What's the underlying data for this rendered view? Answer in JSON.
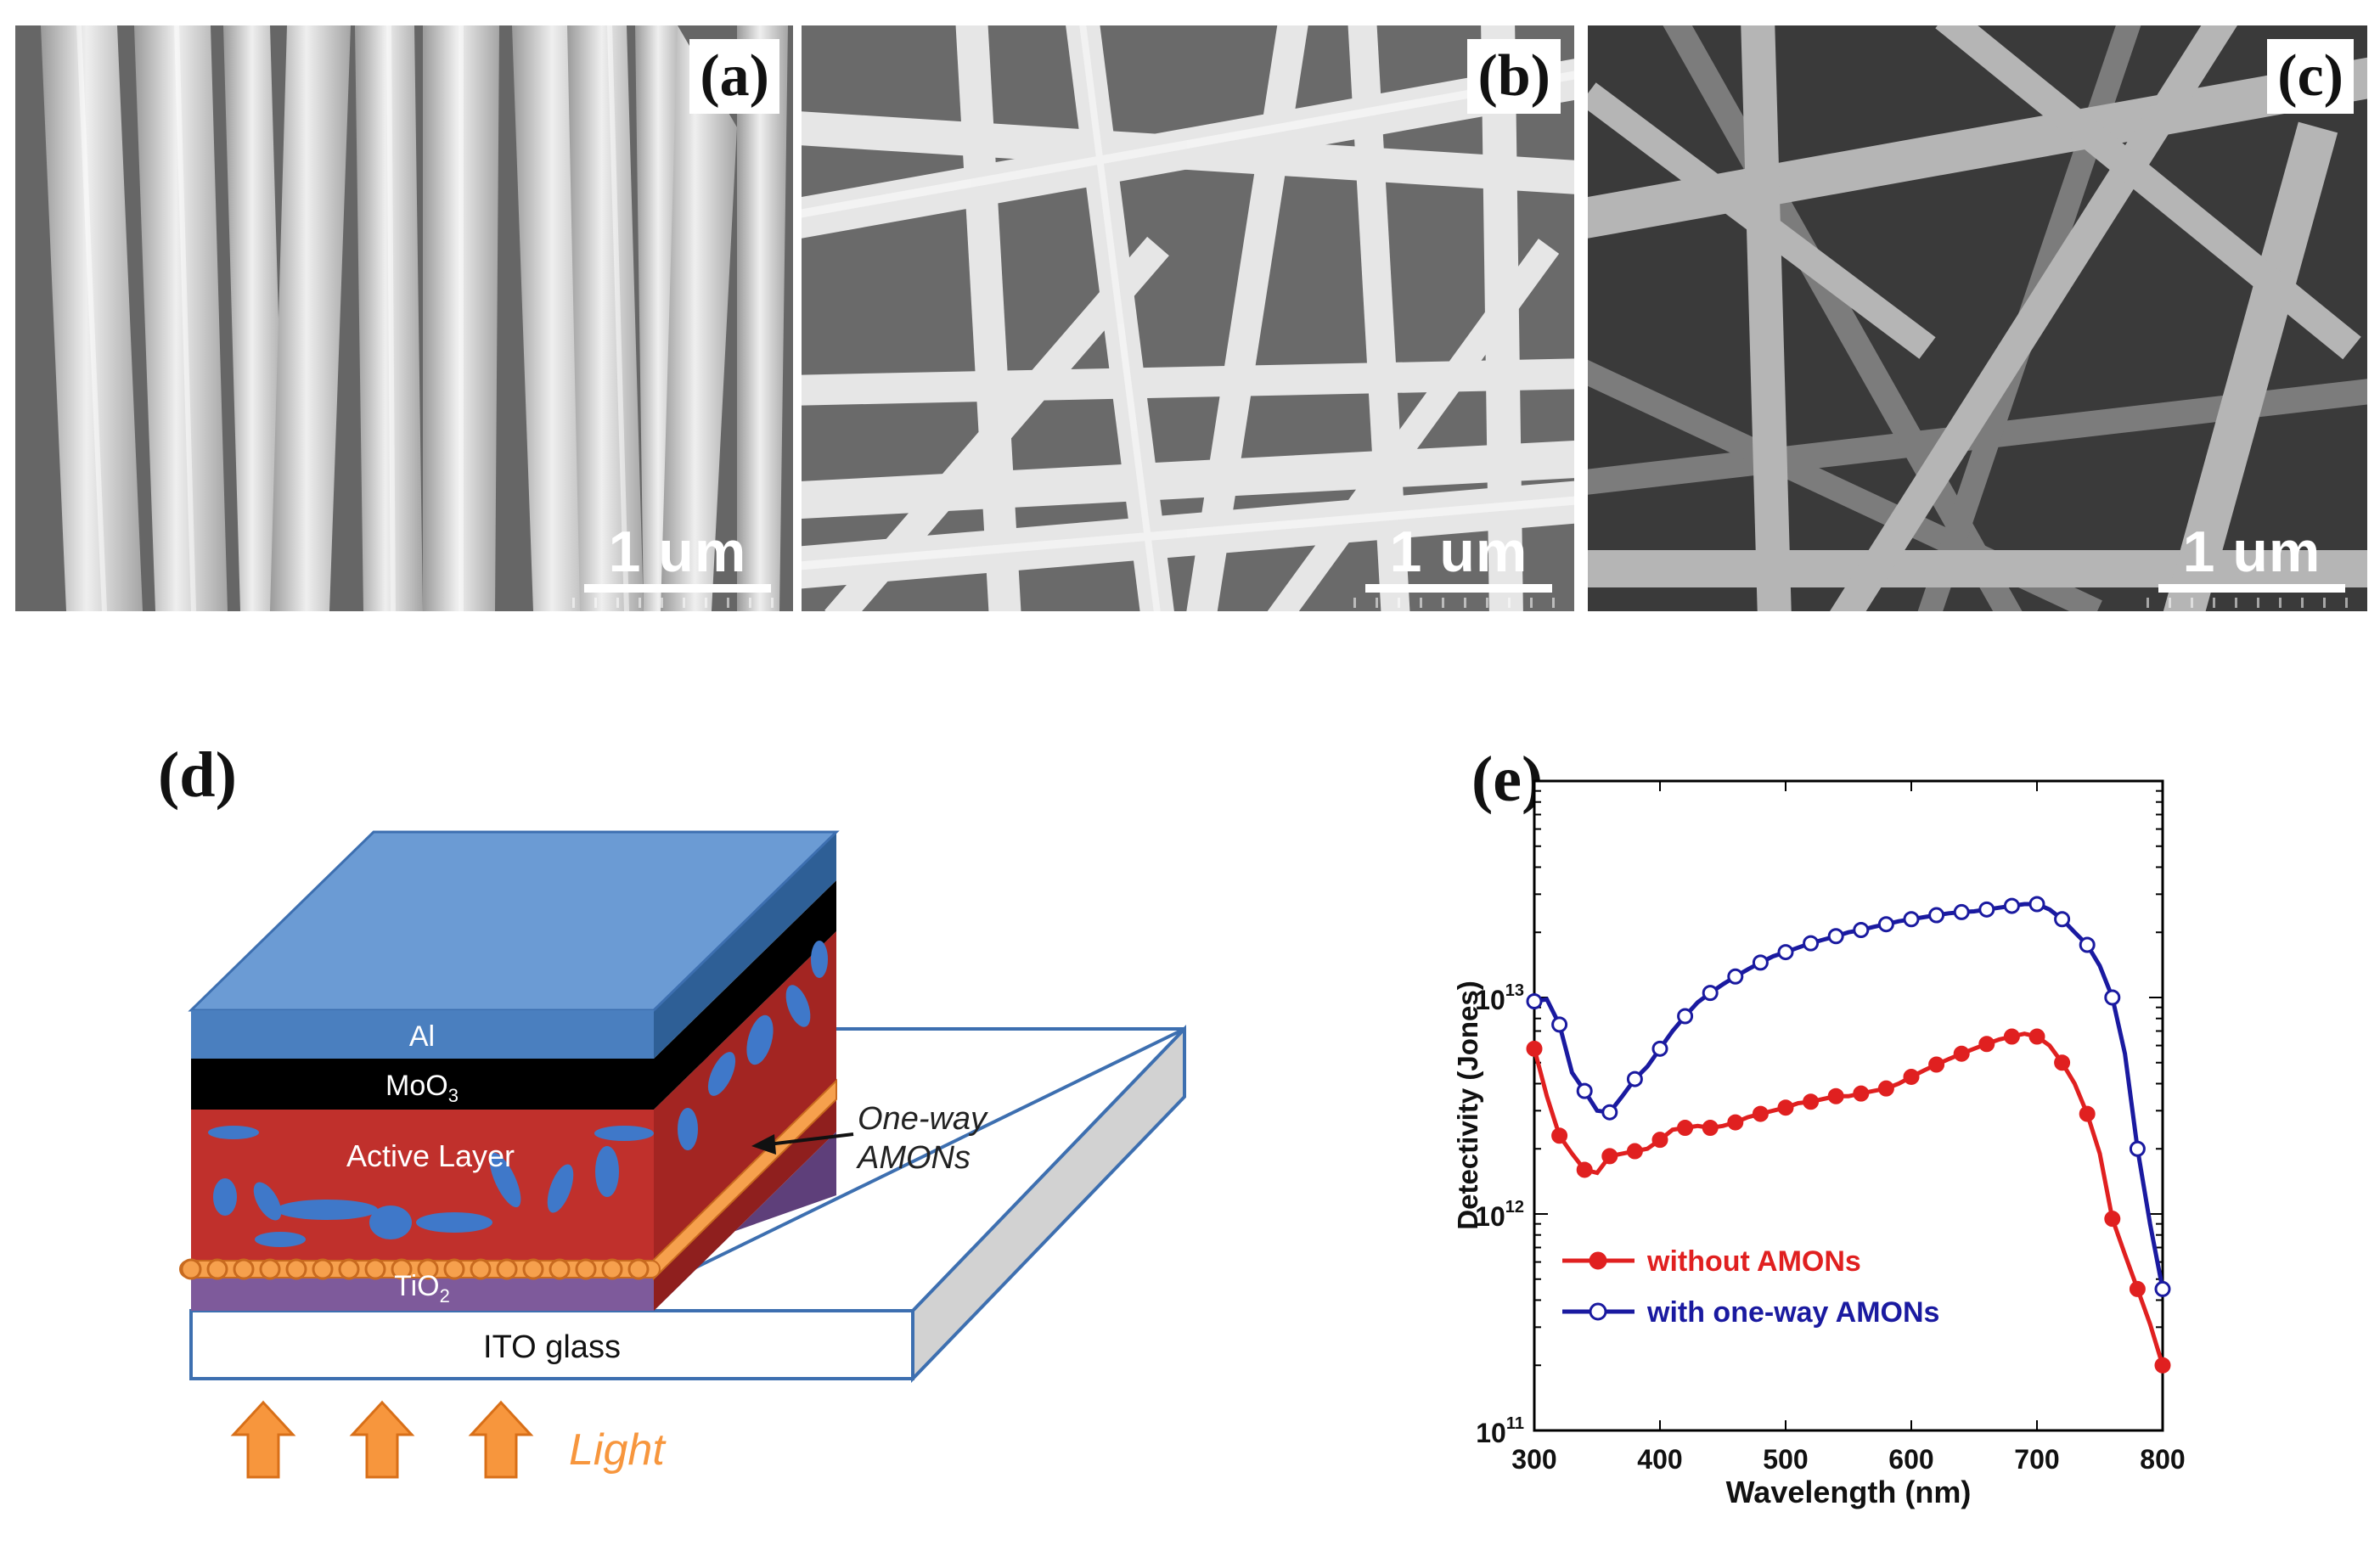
{
  "panels": {
    "a": {
      "label": "(a)",
      "scale_bar": "1 um"
    },
    "b": {
      "label": "(b)",
      "scale_bar": "1 um"
    },
    "c": {
      "label": "(c)",
      "scale_bar": "1 um"
    },
    "d": {
      "label": "(d)",
      "layers": {
        "al": "Al",
        "moo3": "MoO",
        "moo3_sub": "3",
        "active": "Active Layer",
        "tio2": "TiO",
        "tio2_sub": "2",
        "ito": "ITO glass"
      },
      "annotation_line1": "One-way",
      "annotation_line2": "AMONs",
      "light_label": "Light",
      "colors": {
        "al": "#4a7fbf",
        "moo3": "#000000",
        "active": "#c0302c",
        "tio2": "#7e5a9b",
        "amon": "#f6a04d",
        "light": "#f7963d"
      }
    },
    "e": {
      "label": "(e)"
    }
  },
  "chart_data": {
    "type": "line",
    "xlabel": "Wavelength (nm)",
    "ylabel": "Detectivity (Jones)",
    "xlim": [
      300,
      800
    ],
    "ylim": [
      100000000000.0,
      100000000000000.0
    ],
    "yscale": "log",
    "xticks": [
      300,
      400,
      500,
      600,
      700,
      800
    ],
    "ytick_labels": [
      {
        "value": 100000000000.0,
        "base": "10",
        "exp": "11"
      },
      {
        "value": 1000000000000.0,
        "base": "10",
        "exp": "12"
      },
      {
        "value": 10000000000000.0,
        "base": "10",
        "exp": "13"
      }
    ],
    "legend_position": "lower-left",
    "series": [
      {
        "name": "without AMONs",
        "color": "#e02020",
        "marker": "filled-circle",
        "x": [
          300,
          310,
          320,
          330,
          340,
          350,
          360,
          370,
          380,
          390,
          400,
          410,
          420,
          430,
          440,
          450,
          460,
          470,
          480,
          490,
          500,
          510,
          520,
          530,
          540,
          550,
          560,
          570,
          580,
          590,
          600,
          610,
          620,
          630,
          640,
          650,
          660,
          670,
          680,
          690,
          700,
          710,
          720,
          730,
          740,
          750,
          760,
          770,
          780,
          790,
          800
        ],
        "y": [
          5800000000000.0,
          3500000000000.0,
          2300000000000.0,
          1900000000000.0,
          1600000000000.0,
          1550000000000.0,
          1850000000000.0,
          1900000000000.0,
          1950000000000.0,
          2000000000000.0,
          2200000000000.0,
          2450000000000.0,
          2500000000000.0,
          2550000000000.0,
          2500000000000.0,
          2550000000000.0,
          2650000000000.0,
          2800000000000.0,
          2900000000000.0,
          3000000000000.0,
          3100000000000.0,
          3250000000000.0,
          3300000000000.0,
          3400000000000.0,
          3500000000000.0,
          3500000000000.0,
          3600000000000.0,
          3700000000000.0,
          3800000000000.0,
          4000000000000.0,
          4300000000000.0,
          4600000000000.0,
          4900000000000.0,
          5200000000000.0,
          5500000000000.0,
          5800000000000.0,
          6100000000000.0,
          6400000000000.0,
          6600000000000.0,
          6800000000000.0,
          6600000000000.0,
          6000000000000.0,
          5000000000000.0,
          4000000000000.0,
          2900000000000.0,
          1900000000000.0,
          950000000000.0,
          650000000000.0,
          450000000000.0,
          310000000000.0,
          200000000000.0
        ]
      },
      {
        "name": "with one-way AMONs",
        "color": "#1a1aa0",
        "marker": "open-circle",
        "x": [
          300,
          310,
          320,
          330,
          340,
          350,
          360,
          370,
          380,
          390,
          400,
          410,
          420,
          430,
          440,
          450,
          460,
          470,
          480,
          490,
          500,
          510,
          520,
          530,
          540,
          550,
          560,
          570,
          580,
          590,
          600,
          610,
          620,
          630,
          640,
          650,
          660,
          670,
          680,
          690,
          700,
          710,
          720,
          730,
          740,
          750,
          760,
          770,
          780,
          790,
          800
        ],
        "y": [
          9600000000000.0,
          9800000000000.0,
          7500000000000.0,
          4500000000000.0,
          3700000000000.0,
          3000000000000.0,
          2950000000000.0,
          3500000000000.0,
          4200000000000.0,
          4800000000000.0,
          5800000000000.0,
          7000000000000.0,
          8200000000000.0,
          9500000000000.0,
          10500000000000.0,
          11500000000000.0,
          12500000000000.0,
          13500000000000.0,
          14500000000000.0,
          15500000000000.0,
          16200000000000.0,
          17000000000000.0,
          17800000000000.0,
          18500000000000.0,
          19200000000000.0,
          20000000000000.0,
          20500000000000.0,
          21200000000000.0,
          21800000000000.0,
          22500000000000.0,
          23000000000000.0,
          23500000000000.0,
          24000000000000.0,
          24500000000000.0,
          24800000000000.0,
          25000000000000.0,
          25500000000000.0,
          26000000000000.0,
          26500000000000.0,
          27000000000000.0,
          27000000000000.0,
          25500000000000.0,
          23000000000000.0,
          20000000000000.0,
          17500000000000.0,
          14000000000000.0,
          10000000000000.0,
          5500000000000.0,
          2000000000000.0,
          900000000000.0,
          450000000000.0
        ]
      }
    ]
  }
}
